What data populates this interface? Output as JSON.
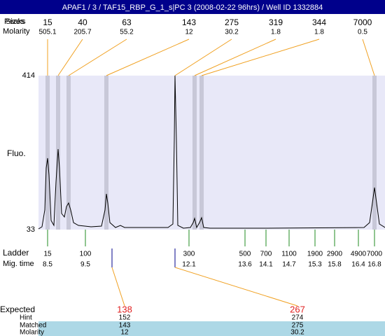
{
  "header": {
    "title": "APAF1 / 3 / TAF15_RBP_G_1_s|PC 3 (2008-02-22 96hrs) / Well ID 1332884"
  },
  "peaks": {
    "label_a": "Peaks",
    "label_b": "Sizes",
    "molarity_label": "Molarity",
    "sizes": [
      "15",
      "40",
      "63",
      "143",
      "275",
      "319",
      "344",
      "7000"
    ],
    "molarities": [
      "505.1",
      "205.7",
      "55.2",
      "12",
      "30.2",
      "1.8",
      "1.8",
      "0.5"
    ]
  },
  "plot": {
    "y_label": "Fluo.",
    "y_max": "414",
    "y_min": "33"
  },
  "ladder": {
    "label": "Ladder",
    "time_label": "Mig. time",
    "sizes": [
      "15",
      "100",
      "300",
      "500",
      "700",
      "1100",
      "1900",
      "2900",
      "4900",
      "7000"
    ],
    "times": [
      "8.5",
      "9.5",
      "12.1",
      "13.6",
      "14.1",
      "14.7",
      "15.3",
      "15.8",
      "16.4",
      "16.8"
    ]
  },
  "table": {
    "labels": [
      "Expected",
      "Hint",
      "Matched",
      "Molarity"
    ],
    "columns": [
      [
        "138",
        "152",
        "143",
        "12"
      ],
      [
        "267",
        "274",
        "275",
        "30.2"
      ]
    ]
  }
}
